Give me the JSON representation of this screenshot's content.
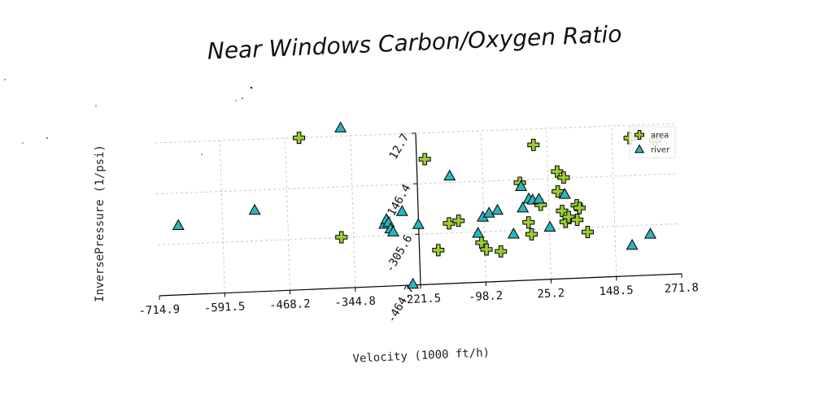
{
  "chart_data": {
    "type": "scatter",
    "title": "Near Windows Carbon/Oxygen Ratio",
    "xlabel": "Velocity (1000 ft/h)",
    "ylabel": "InversePressure (1/psi)",
    "xlim": [
      -714.9,
      271.8
    ],
    "ylim": [
      -464.7,
      12.7
    ],
    "x_ticks": [
      -714.9,
      -591.5,
      -468.2,
      -344.8,
      -221.5,
      -98.2,
      25.2,
      148.5,
      271.8
    ],
    "x_tick_labels": [
      "-714.9",
      "-591.5",
      "-468.2",
      "-344.8",
      "-221.5",
      "-98.2",
      "25.2",
      "148.5",
      "271.8"
    ],
    "y_ticks": [
      -464.7,
      -305.6,
      -146.4,
      12.7
    ],
    "y_tick_labels": [
      "-464.7",
      "-305.6",
      "-146.4",
      "12.7"
    ],
    "grid": true,
    "legend_position": "top-right",
    "series": [
      {
        "name": "area",
        "marker": "plus",
        "color": "#9acd32",
        "x": [
          -442,
          -368,
          -206,
          -186,
          -164,
          -146,
          -104,
          -68,
          -95,
          -28,
          -14,
          -9,
          0,
          10,
          43,
          43,
          50,
          55,
          56,
          62,
          78,
          78,
          83,
          97,
          182,
          230
        ],
        "y": [
          12,
          -305,
          -70,
          -358,
          -275,
          -268,
          -340,
          -370,
          -362,
          -156,
          -282,
          -320,
          -38,
          -228,
          -125,
          -188,
          -250,
          -145,
          -285,
          -270,
          -234,
          -280,
          -243,
          -320,
          -28,
          -38
        ]
      },
      {
        "name": "river",
        "marker": "triangle",
        "color": "#2ab5be",
        "x": [
          -675,
          -530,
          -363,
          -286,
          -282,
          -278,
          -275,
          -270,
          -252,
          -236,
          -222,
          -160,
          -110,
          -100,
          -88,
          -72,
          -43,
          -26,
          -24,
          -12,
          -5,
          7,
          26,
          56,
          180,
          215
        ],
        "y": [
          -248,
          -210,
          38,
          -270,
          -255,
          -265,
          -285,
          -295,
          -232,
          -462,
          -275,
          -126,
          -310,
          -260,
          -248,
          -240,
          -317,
          -168,
          -236,
          -208,
          -212,
          -210,
          -300,
          -198,
          -368,
          -335
        ]
      }
    ]
  }
}
